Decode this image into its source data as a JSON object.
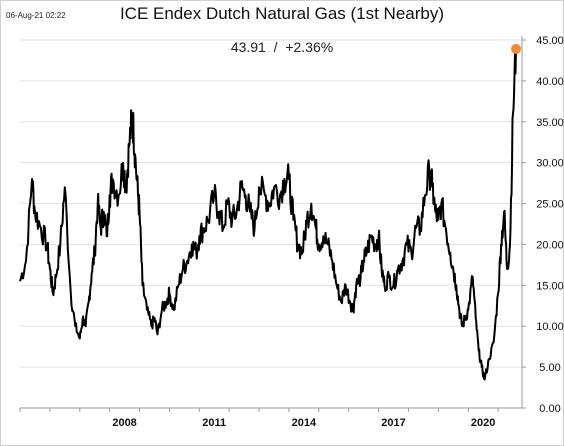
{
  "header": {
    "timestamp": "06-Aug-21 02:22"
  },
  "quote": {
    "price": "43.91",
    "separator": "/",
    "change": "+2.36%"
  },
  "colors": {
    "line": "#000000",
    "grid": "#e3e3e3",
    "axis": "#9a9a9a",
    "last_marker": "#f08a3a"
  },
  "chart_data": {
    "type": "line",
    "title": "ICE Endex Dutch Natural Gas (1st Nearby)",
    "xlabel": "",
    "ylabel": "",
    "x_range": [
      2005.0,
      2021.8
    ],
    "ylim": [
      0,
      45
    ],
    "y_axis_side": "right",
    "grid": "horizontal",
    "y_ticks": [
      "0.00",
      "5.00",
      "10.00",
      "15.00",
      "20.00",
      "25.00",
      "30.00",
      "35.00",
      "40.00",
      "45.00"
    ],
    "x_ticks": [
      2008,
      2011,
      2014,
      2017,
      2020
    ],
    "x_tick_labels": [
      "2008",
      "2011",
      "2014",
      "2017",
      "2020"
    ],
    "last_point": {
      "x": 2021.6,
      "y": 43.91
    },
    "series": [
      {
        "x": [
          2005.0,
          2005.2,
          2005.4,
          2005.5,
          2005.7,
          2005.9,
          2006.0,
          2006.1,
          2006.2,
          2006.35,
          2006.5,
          2006.7,
          2006.85,
          2007.0,
          2007.1,
          2007.2,
          2007.3,
          2007.4,
          2007.5,
          2007.6,
          2007.7,
          2007.8,
          2007.9,
          2008.0,
          2008.1,
          2008.3,
          2008.45,
          2008.55,
          2008.65,
          2008.75,
          2008.8,
          2008.85,
          2008.95,
          2009.0,
          2009.1,
          2009.25,
          2009.4,
          2009.5,
          2009.6,
          2009.75,
          2009.9,
          2010.0,
          2010.15,
          2010.3,
          2010.45,
          2010.6,
          2010.75,
          2010.9,
          2011.0,
          2011.15,
          2011.3,
          2011.5,
          2011.65,
          2011.8,
          2011.95,
          2012.1,
          2012.25,
          2012.4,
          2012.55,
          2012.7,
          2012.85,
          2013.0,
          2013.2,
          2013.35,
          2013.5,
          2013.7,
          2013.85,
          2014.0,
          2014.15,
          2014.3,
          2014.45,
          2014.6,
          2014.75,
          2014.9,
          2015.0,
          2015.15,
          2015.3,
          2015.45,
          2015.6,
          2015.75,
          2015.9,
          2016.05,
          2016.15,
          2016.25,
          2016.4,
          2016.5,
          2016.6,
          2016.75,
          2016.9,
          2017.0,
          2017.1,
          2017.2,
          2017.35,
          2017.5,
          2017.65,
          2017.8,
          2017.95,
          2018.1,
          2018.25,
          2018.4,
          2018.55,
          2018.7,
          2018.8,
          2018.9,
          2019.0,
          2019.1,
          2019.25,
          2019.4,
          2019.5,
          2019.6,
          2019.7,
          2019.8,
          2019.9,
          2020.0,
          2020.15,
          2020.25,
          2020.35,
          2020.45,
          2020.55,
          2020.7,
          2020.85,
          2021.0,
          2021.1,
          2021.2,
          2021.3,
          2021.4,
          2021.5,
          2021.6
        ],
        "values": [
          15.5,
          18.0,
          28.0,
          24.0,
          22.0,
          20.0,
          17.0,
          14.0,
          16.0,
          20.0,
          27.0,
          14.0,
          10.0,
          8.5,
          11.0,
          10.0,
          13.0,
          16.5,
          19.0,
          25.0,
          22.0,
          24.0,
          21.0,
          26.0,
          28.0,
          26.0,
          30.0,
          27.0,
          32.0,
          35.5,
          34.0,
          31.0,
          26.0,
          24.0,
          15.0,
          12.0,
          10.0,
          11.0,
          9.0,
          12.0,
          13.0,
          14.0,
          12.0,
          15.0,
          17.0,
          18.0,
          20.0,
          19.0,
          21.0,
          22.0,
          23.0,
          26.0,
          24.0,
          22.0,
          25.0,
          23.0,
          24.0,
          27.0,
          26.0,
          24.0,
          22.0,
          27.0,
          26.0,
          25.0,
          27.0,
          26.0,
          28.0,
          28.0,
          23.0,
          20.0,
          19.0,
          23.0,
          25.0,
          22.0,
          20.0,
          21.0,
          20.0,
          18.0,
          15.0,
          13.0,
          15.0,
          13.0,
          12.0,
          15.0,
          16.0,
          18.0,
          19.0,
          21.0,
          20.0,
          21.0,
          17.0,
          15.0,
          16.0,
          15.0,
          17.0,
          18.0,
          20.0,
          19.0,
          22.0,
          22.0,
          26.0,
          29.0,
          27.0,
          24.0,
          23.0,
          25.0,
          22.0,
          19.0,
          17.0,
          15.0,
          12.0,
          10.0,
          11.0,
          12.0,
          16.0,
          11.0,
          7.0,
          5.0,
          3.5,
          6.0,
          8.0,
          14.0,
          20.0,
          24.0,
          17.0,
          20.0,
          36.0,
          43.91
        ]
      }
    ]
  }
}
